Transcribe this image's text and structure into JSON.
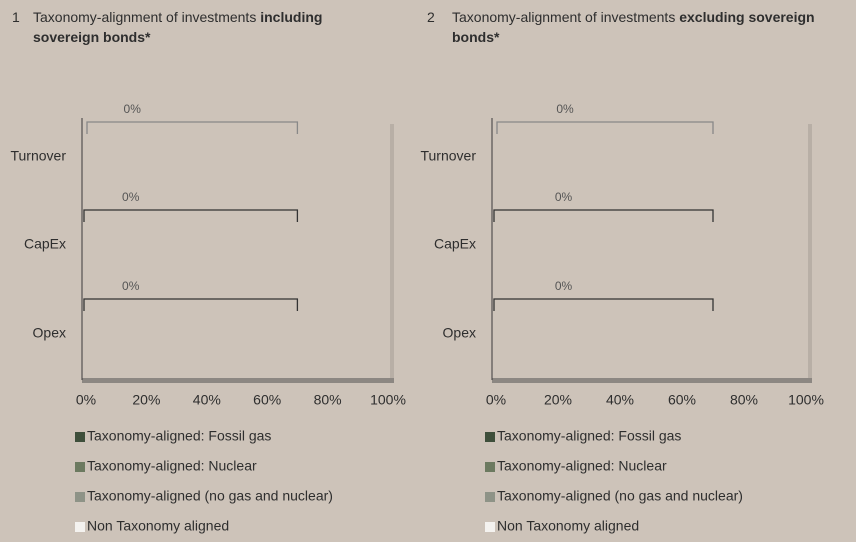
{
  "chart_data": [
    {
      "type": "bar",
      "number": "1",
      "title": "Taxonomy-alignment of investments",
      "title_bold": "including sovereign bonds*",
      "categories": [
        "Turnover",
        "CapEx",
        "Opex"
      ],
      "series": [
        {
          "name": "Taxonomy-aligned: Fossil gas",
          "color": "#3e4f3b",
          "values": [
            0,
            0,
            0
          ]
        },
        {
          "name": "Taxonomy-aligned: Nuclear",
          "color": "#6c7a60",
          "values": [
            0,
            0,
            0
          ]
        },
        {
          "name": "Taxonomy-aligned (no gas and nuclear)",
          "color": "#8e9387",
          "values": [
            0,
            0,
            0
          ]
        },
        {
          "name": "Non Taxonomy aligned",
          "color": "#f4f2ef",
          "values": [
            0,
            0,
            0
          ]
        }
      ],
      "totals": [
        0,
        0,
        0
      ],
      "value_labels": [
        "0%",
        "0%",
        "0%"
      ],
      "xlim": [
        0,
        100
      ],
      "xticks": [
        {
          "value": 0,
          "label": "0%"
        },
        {
          "value": 20,
          "label": "20%"
        },
        {
          "value": 40,
          "label": "40%"
        },
        {
          "value": 60,
          "label": "60%"
        },
        {
          "value": 80,
          "label": "80%"
        },
        {
          "value": 100,
          "label": "100%"
        }
      ]
    },
    {
      "type": "bar",
      "number": "2",
      "title": "Taxonomy-alignment of investments",
      "title_bold": "excluding sovereign bonds*",
      "categories": [
        "Turnover",
        "CapEx",
        "Opex"
      ],
      "series": [
        {
          "name": "Taxonomy-aligned: Fossil gas",
          "color": "#3e4f3b",
          "values": [
            0,
            0,
            0
          ]
        },
        {
          "name": "Taxonomy-aligned: Nuclear",
          "color": "#6c7a60",
          "values": [
            0,
            0,
            0
          ]
        },
        {
          "name": "Taxonomy-aligned (no gas and nuclear)",
          "color": "#8e9387",
          "values": [
            0,
            0,
            0
          ]
        },
        {
          "name": "Non Taxonomy aligned",
          "color": "#f4f2ef",
          "values": [
            0,
            0,
            0
          ]
        }
      ],
      "totals": [
        0,
        0,
        0
      ],
      "value_labels": [
        "0%",
        "0%",
        "0%"
      ],
      "xlim": [
        0,
        100
      ],
      "xticks": [
        {
          "value": 0,
          "label": "0%"
        },
        {
          "value": 20,
          "label": "20%"
        },
        {
          "value": 40,
          "label": "40%"
        },
        {
          "value": 60,
          "label": "60%"
        },
        {
          "value": 80,
          "label": "80%"
        },
        {
          "value": 100,
          "label": "100%"
        }
      ]
    }
  ]
}
